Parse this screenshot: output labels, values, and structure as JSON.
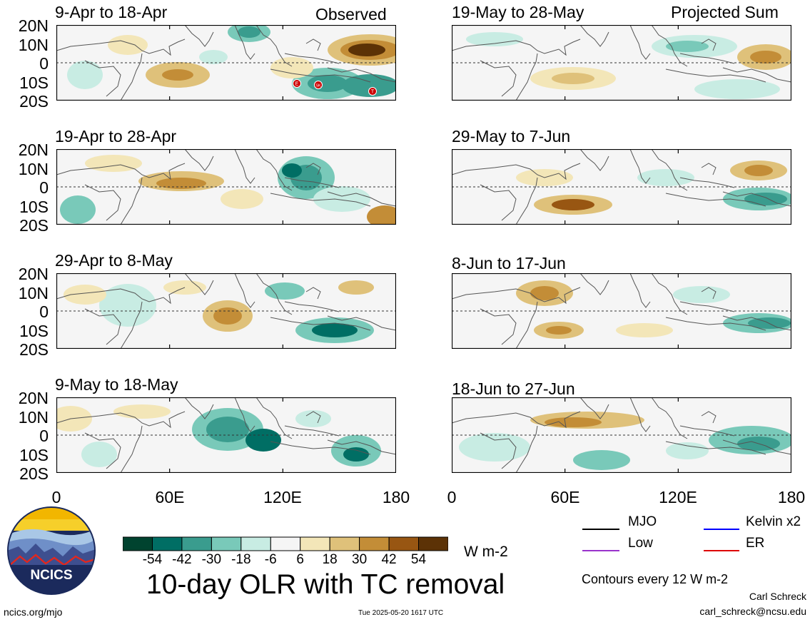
{
  "header": {
    "left": "Observed",
    "right": "Projected Sum"
  },
  "observed_panels": [
    "9-Apr to 18-Apr",
    "19-Apr to 28-Apr",
    "29-Apr to 8-May",
    "9-May to 18-May"
  ],
  "projected_panels": [
    "19-May to 28-May",
    "29-May to 7-Jun",
    "8-Jun to 17-Jun",
    "18-Jun to 27-Jun"
  ],
  "lat_labels": [
    "20N",
    "10N",
    "0",
    "10S",
    "20S"
  ],
  "lon_labels": [
    "0",
    "60E",
    "120E",
    "180"
  ],
  "tc_markers": [
    "E",
    "SK",
    "T"
  ],
  "colorbar": {
    "colors": [
      "#00432f",
      "#006e64",
      "#3a9c8e",
      "#79c9b9",
      "#c8ece3",
      "#f5f5f5",
      "#f3e6b8",
      "#dfc17a",
      "#c38d37",
      "#985612",
      "#5c3206"
    ],
    "labels": [
      "-54",
      "-42",
      "-30",
      "-18",
      "-6",
      "6",
      "18",
      "30",
      "42",
      "54"
    ],
    "units": "W m-2"
  },
  "title": "10-day OLR with TC removal",
  "logo_text": "NCICS",
  "legend": [
    {
      "label": "MJO",
      "color": "#000000"
    },
    {
      "label": "Kelvin x2",
      "color": "#0000ff"
    },
    {
      "label": "Low",
      "color": "#9933cc"
    },
    {
      "label": "ER",
      "color": "#dd0000"
    }
  ],
  "contours_note": "Contours every 12 W m-2",
  "author": "Carl Schreck",
  "email": "carl_schreck@ncsu.edu",
  "url": "ncics.org/mjo",
  "timestamp": "Tue 2025-05-20 1617 UTC"
}
